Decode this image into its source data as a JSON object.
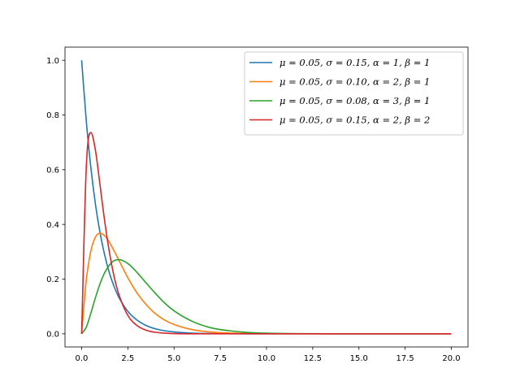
{
  "chart_data": {
    "type": "line",
    "title": "",
    "xlabel": "",
    "ylabel": "",
    "xlim": [
      -0.9,
      20.9
    ],
    "ylim": [
      -0.048,
      1.048
    ],
    "xticks": [
      0,
      2.5,
      5,
      7.5,
      10,
      12.5,
      15,
      17.5,
      20
    ],
    "xtick_labels": [
      "0.0",
      "2.5",
      "5.0",
      "7.5",
      "10.0",
      "12.5",
      "15.0",
      "17.5",
      "20.0"
    ],
    "yticks": [
      0,
      0.2,
      0.4,
      0.6,
      0.8,
      1.0
    ],
    "ytick_labels": [
      "0.0",
      "0.2",
      "0.4",
      "0.6",
      "0.8",
      "1.0"
    ],
    "grid": false,
    "legend_position": "top-right",
    "x": [
      0,
      0.25,
      0.5,
      0.75,
      1,
      1.25,
      1.5,
      1.75,
      2,
      2.5,
      3,
      3.5,
      4,
      4.5,
      5,
      6,
      7,
      8,
      9,
      10,
      12,
      14,
      16,
      18,
      20
    ],
    "series": [
      {
        "name": "μ = 0.05,  σ = 0.15,  α = 1,  β = 1",
        "color": "#1f77b4",
        "values": [
          1.0,
          0.779,
          0.607,
          0.472,
          0.368,
          0.287,
          0.223,
          0.174,
          0.135,
          0.082,
          0.05,
          0.03,
          0.018,
          0.011,
          0.0067,
          0.0025,
          0.0009,
          0.0003,
          0.0001,
          0.0,
          0.0,
          0.0,
          0.0,
          0.0,
          0.0
        ]
      },
      {
        "name": "μ = 0.05,  σ = 0.10,  α = 2,  β = 1",
        "color": "#ff7f0e",
        "values": [
          0.0,
          0.195,
          0.303,
          0.354,
          0.368,
          0.358,
          0.335,
          0.304,
          0.271,
          0.205,
          0.149,
          0.106,
          0.073,
          0.05,
          0.034,
          0.015,
          0.0064,
          0.0027,
          0.0011,
          0.0005,
          0.0001,
          0.0,
          0.0,
          0.0,
          0.0
        ]
      },
      {
        "name": "μ = 0.05,  σ = 0.08,  α = 3,  β = 1",
        "color": "#2ca02c",
        "values": [
          0.0,
          0.024,
          0.076,
          0.133,
          0.184,
          0.224,
          0.251,
          0.267,
          0.271,
          0.257,
          0.224,
          0.185,
          0.147,
          0.112,
          0.084,
          0.045,
          0.022,
          0.011,
          0.005,
          0.0023,
          0.0004,
          0.0001,
          0.0,
          0.0,
          0.0
        ]
      },
      {
        "name": "μ = 0.05,  σ = 0.15,  α = 2,  β = 2",
        "color": "#d62728",
        "values": [
          0.0,
          0.607,
          0.736,
          0.669,
          0.541,
          0.41,
          0.299,
          0.211,
          0.147,
          0.067,
          0.03,
          0.013,
          0.0054,
          0.0022,
          0.0009,
          0.0001,
          0.0,
          0.0,
          0.0,
          0.0,
          0.0,
          0.0,
          0.0,
          0.0,
          0.0
        ]
      }
    ]
  }
}
